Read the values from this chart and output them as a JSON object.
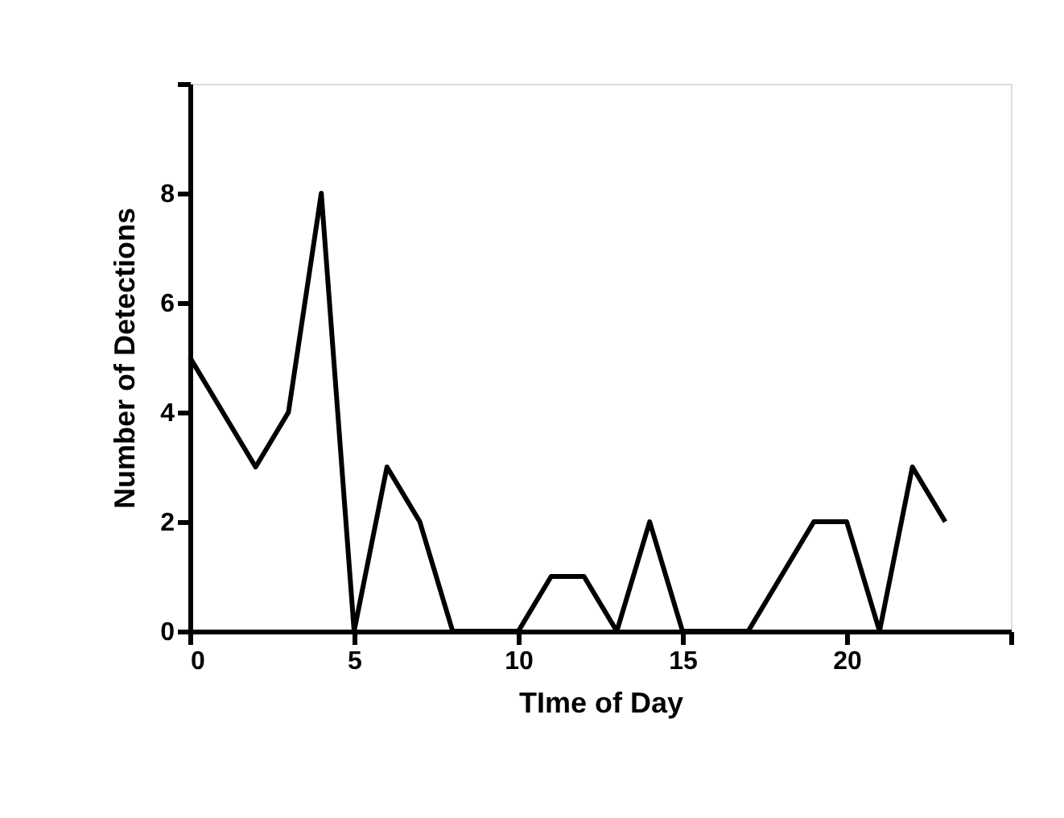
{
  "chart_data": {
    "type": "line",
    "xlabel": "TIme of Day",
    "ylabel": "Number of Detections",
    "x": [
      0,
      1,
      2,
      3,
      4,
      5,
      6,
      7,
      8,
      9,
      10,
      11,
      12,
      13,
      14,
      15,
      16,
      17,
      18,
      19,
      20,
      21,
      22,
      23
    ],
    "series": [
      {
        "color": "#000000",
        "values": [
          5,
          4,
          3,
          4,
          8,
          0,
          3,
          2,
          0,
          0,
          0,
          1,
          1,
          0,
          2,
          0,
          0,
          0,
          1,
          2,
          2,
          0,
          3,
          2
        ]
      }
    ],
    "xlim": [
      0,
      25
    ],
    "xticks": [
      0,
      5,
      10,
      15,
      20,
      {
        "value": 25,
        "label": null
      }
    ],
    "ylim": [
      0,
      10
    ],
    "yticks": [
      0,
      2,
      4,
      6,
      8,
      {
        "value": 10,
        "label": null
      }
    ],
    "grid": false,
    "legend": false,
    "marker": "none",
    "line_style": "solid"
  }
}
